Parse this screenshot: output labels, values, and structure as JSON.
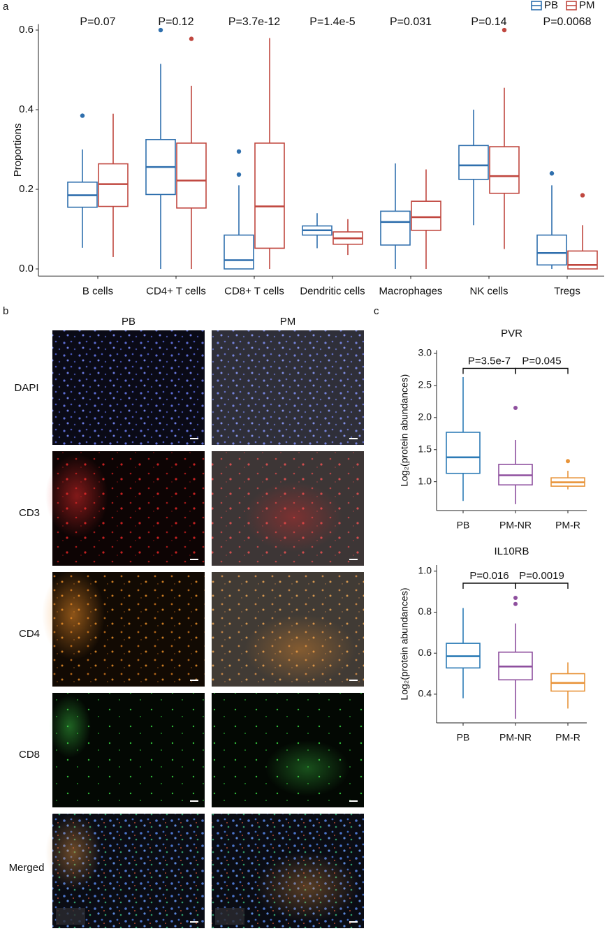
{
  "panel_labels": [
    "a",
    "b",
    "c"
  ],
  "images": {
    "columns": [
      "PB",
      "PM"
    ],
    "rows": [
      "DAPI",
      "CD3",
      "CD4",
      "CD8",
      "Merged"
    ]
  },
  "chart_data": [
    {
      "type": "box",
      "ylabel": "Proportions",
      "categories": [
        "B cells",
        "CD4+ T cells",
        "CD8+ T cells",
        "Dendritic cells",
        "Macrophages",
        "NK cells",
        "Tregs"
      ],
      "annotations": [
        "P=0.07",
        "P=0.12",
        "P=3.7e-12",
        "P=1.4e-5",
        "P=0.031",
        "P=0.14",
        "P=0.0068"
      ],
      "ylim": [
        -0.018,
        0.615
      ],
      "yticks": [
        {
          "value": 0,
          "label": "0.0"
        },
        0.2,
        0.4,
        0.6
      ],
      "legend": "top-right",
      "series": [
        {
          "name": "PB",
          "color": "#2f6fad",
          "boxes": [
            {
              "whisker_low": 0.053,
              "q1": 0.155,
              "median": 0.185,
              "q3": 0.218,
              "whisker_high": 0.3,
              "outliers": [
                0.385
              ]
            },
            {
              "whisker_low": 0.0,
              "q1": 0.187,
              "median": 0.256,
              "q3": 0.325,
              "whisker_high": 0.515,
              "outliers": [
                0.6
              ]
            },
            {
              "whisker_low": 0.0,
              "q1": 0.0,
              "median": 0.022,
              "q3": 0.085,
              "whisker_high": 0.21,
              "outliers": [
                0.295,
                0.237
              ]
            },
            {
              "whisker_low": 0.052,
              "q1": 0.085,
              "median": 0.097,
              "q3": 0.108,
              "whisker_high": 0.14,
              "outliers": []
            },
            {
              "whisker_low": 0.0,
              "q1": 0.06,
              "median": 0.118,
              "q3": 0.145,
              "whisker_high": 0.265,
              "outliers": []
            },
            {
              "whisker_low": 0.11,
              "q1": 0.225,
              "median": 0.26,
              "q3": 0.31,
              "whisker_high": 0.4,
              "outliers": []
            },
            {
              "whisker_low": 0.0,
              "q1": 0.01,
              "median": 0.04,
              "q3": 0.085,
              "whisker_high": 0.21,
              "outliers": [
                0.24
              ]
            }
          ]
        },
        {
          "name": "PM",
          "color": "#c0473f",
          "boxes": [
            {
              "whisker_low": 0.03,
              "q1": 0.157,
              "median": 0.213,
              "q3": 0.264,
              "whisker_high": 0.39,
              "outliers": []
            },
            {
              "whisker_low": 0.0,
              "q1": 0.153,
              "median": 0.222,
              "q3": 0.316,
              "whisker_high": 0.46,
              "outliers": [
                0.578
              ]
            },
            {
              "whisker_low": 0.0,
              "q1": 0.052,
              "median": 0.157,
              "q3": 0.316,
              "whisker_high": 0.58,
              "outliers": []
            },
            {
              "whisker_low": 0.035,
              "q1": 0.062,
              "median": 0.077,
              "q3": 0.093,
              "whisker_high": 0.125,
              "outliers": []
            },
            {
              "whisker_low": 0.0,
              "q1": 0.097,
              "median": 0.13,
              "q3": 0.17,
              "whisker_high": 0.25,
              "outliers": []
            },
            {
              "whisker_low": 0.05,
              "q1": 0.19,
              "median": 0.233,
              "q3": 0.307,
              "whisker_high": 0.455,
              "outliers": [
                0.6
              ]
            },
            {
              "whisker_low": 0.0,
              "q1": 0.0,
              "median": 0.01,
              "q3": 0.045,
              "whisker_high": 0.11,
              "outliers": [
                0.185
              ]
            }
          ]
        }
      ]
    },
    {
      "type": "box",
      "title": "PVR",
      "ylabel": "Log₂(protein abundances)",
      "categories": [
        "PB",
        "PM-NR",
        "PM-R"
      ],
      "colors": [
        "#2c7bb6",
        "#8e4f9e",
        "#e8943a"
      ],
      "ylim": [
        0.55,
        3.05
      ],
      "yticks": [
        {
          "value": 1,
          "label": "1.0"
        },
        1.5,
        {
          "value": 2,
          "label": "2.0"
        },
        2.5,
        {
          "value": 3,
          "label": "3.0"
        }
      ],
      "boxes": [
        {
          "whisker_low": 0.7,
          "q1": 1.13,
          "median": 1.38,
          "q3": 1.77,
          "whisker_high": 2.63,
          "outliers": []
        },
        {
          "whisker_low": 0.65,
          "q1": 0.95,
          "median": 1.1,
          "q3": 1.27,
          "whisker_high": 1.65,
          "outliers": [
            2.15
          ]
        },
        {
          "whisker_low": 0.88,
          "q1": 0.93,
          "median": 0.99,
          "q3": 1.06,
          "whisker_high": 1.17,
          "outliers": [
            1.32
          ]
        }
      ],
      "comparisons": [
        {
          "groups": [
            "PB",
            "PM-NR"
          ],
          "label": "P=3.5e-7"
        },
        {
          "groups": [
            "PM-NR",
            "PM-R"
          ],
          "label": "P=0.045"
        }
      ]
    },
    {
      "type": "box",
      "title": "IL10RB",
      "ylabel": "Log₂(protein abundances)",
      "categories": [
        "PB",
        "PM-NR",
        "PM-R"
      ],
      "colors": [
        "#2c7bb6",
        "#8e4f9e",
        "#e8943a"
      ],
      "ylim": [
        0.26,
        1.03
      ],
      "yticks": [
        0.4,
        0.6,
        0.8,
        {
          "value": 1,
          "label": "1.0"
        }
      ],
      "boxes": [
        {
          "whisker_low": 0.38,
          "q1": 0.528,
          "median": 0.585,
          "q3": 0.648,
          "whisker_high": 0.82,
          "outliers": []
        },
        {
          "whisker_low": 0.28,
          "q1": 0.47,
          "median": 0.535,
          "q3": 0.605,
          "whisker_high": 0.745,
          "outliers": [
            0.84,
            0.87
          ]
        },
        {
          "whisker_low": 0.33,
          "q1": 0.415,
          "median": 0.455,
          "q3": 0.5,
          "whisker_high": 0.555,
          "outliers": []
        }
      ],
      "comparisons": [
        {
          "groups": [
            "PB",
            "PM-NR"
          ],
          "label": "P=0.016"
        },
        {
          "groups": [
            "PM-NR",
            "PM-R"
          ],
          "label": "P=0.0019"
        }
      ]
    }
  ]
}
